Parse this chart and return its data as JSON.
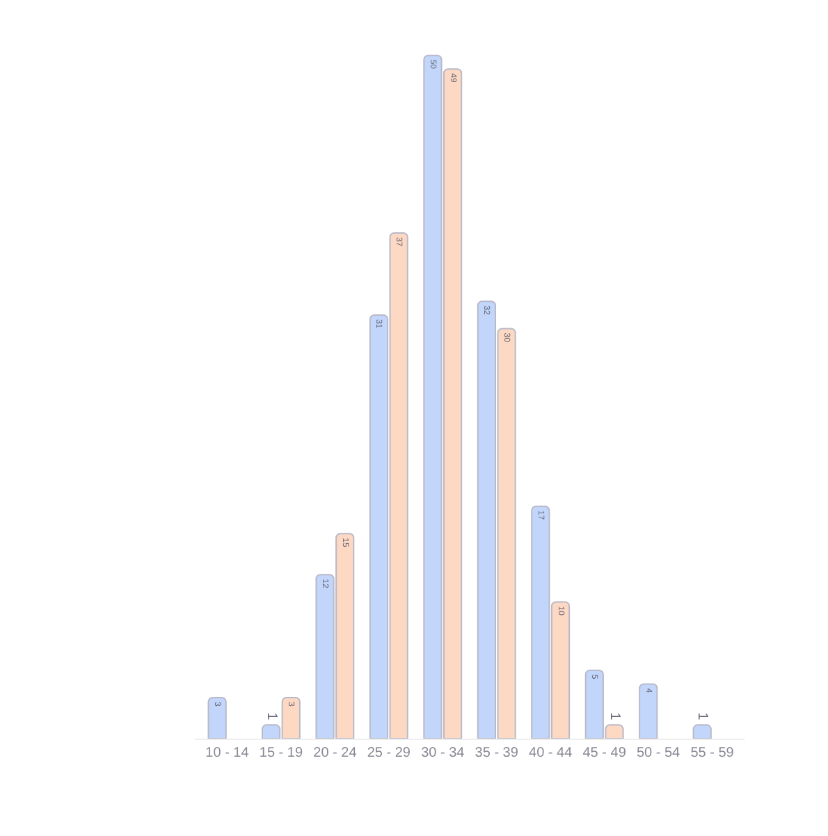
{
  "chart_data": {
    "type": "bar",
    "categories": [
      "10 - 14",
      "15 - 19",
      "20 - 24",
      "25 - 29",
      "30 - 34",
      "35 - 39",
      "40 - 44",
      "45 - 49",
      "50 - 54",
      "55 - 59"
    ],
    "series": [
      {
        "color": "#c2d6fb",
        "values": [
          3,
          1,
          12,
          31,
          50,
          32,
          17,
          5,
          4,
          1
        ]
      },
      {
        "color": "#fdd8c2",
        "values": [
          null,
          3,
          15,
          37,
          49,
          30,
          10,
          1,
          null,
          null
        ]
      }
    ],
    "data_labels": true
  }
}
